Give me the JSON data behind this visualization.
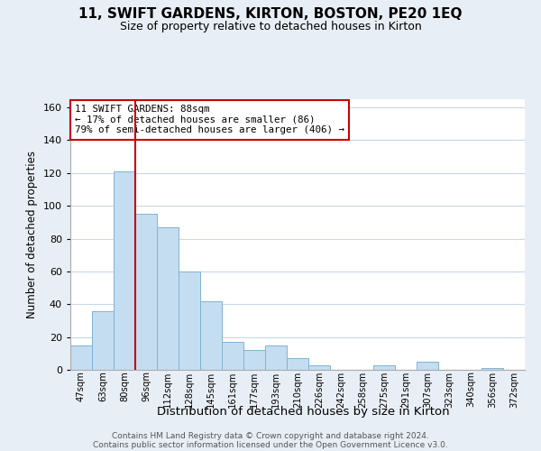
{
  "title": "11, SWIFT GARDENS, KIRTON, BOSTON, PE20 1EQ",
  "subtitle": "Size of property relative to detached houses in Kirton",
  "xlabel": "Distribution of detached houses by size in Kirton",
  "ylabel": "Number of detached properties",
  "bar_color": "#c5ddf0",
  "bar_edge_color": "#7fb3d3",
  "redline_color": "#cc0000",
  "annotation_box_color": "#cc0000",
  "categories": [
    "47sqm",
    "63sqm",
    "80sqm",
    "96sqm",
    "112sqm",
    "128sqm",
    "145sqm",
    "161sqm",
    "177sqm",
    "193sqm",
    "210sqm",
    "226sqm",
    "242sqm",
    "258sqm",
    "275sqm",
    "291sqm",
    "307sqm",
    "323sqm",
    "340sqm",
    "356sqm",
    "372sqm"
  ],
  "values": [
    15,
    36,
    121,
    95,
    87,
    60,
    42,
    17,
    12,
    15,
    7,
    3,
    0,
    0,
    3,
    0,
    5,
    0,
    0,
    1,
    0
  ],
  "annotation_text": "11 SWIFT GARDENS: 88sqm\n← 17% of detached houses are smaller (86)\n79% of semi-detached houses are larger (406) →",
  "ylim": [
    0,
    165
  ],
  "yticks": [
    0,
    20,
    40,
    60,
    80,
    100,
    120,
    140,
    160
  ],
  "footer_line1": "Contains HM Land Registry data © Crown copyright and database right 2024.",
  "footer_line2": "Contains public sector information licensed under the Open Government Licence v3.0.",
  "background_color": "#e8eef5",
  "plot_bg_color": "#ffffff",
  "grid_color": "#c8d8e8"
}
